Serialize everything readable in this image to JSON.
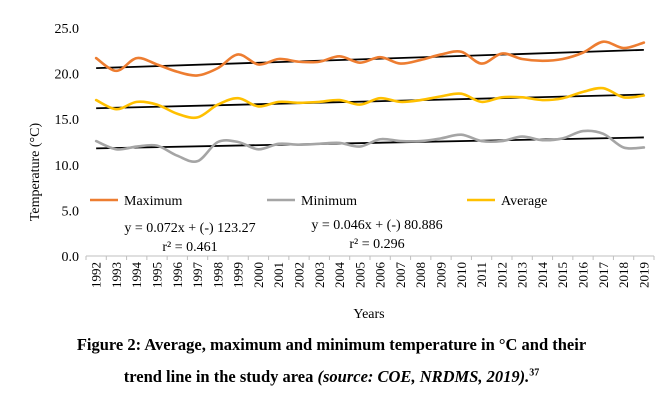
{
  "chart_data": {
    "type": "line",
    "xlabel": "Years",
    "ylabel": "Temperature (°C)",
    "ylim": [
      0,
      25
    ],
    "yticks": [
      "0.0",
      "5.0",
      "10.0",
      "15.0",
      "20.0",
      "25.0"
    ],
    "grid": false,
    "legend_position": "bottom",
    "categories": [
      "1992",
      "1993",
      "1994",
      "1995",
      "1996",
      "1997",
      "1998",
      "1999",
      "2000",
      "2001",
      "2002",
      "2003",
      "2004",
      "2005",
      "2006",
      "2007",
      "2008",
      "2009",
      "2010",
      "2011",
      "2012",
      "2013",
      "2014",
      "2015",
      "2016",
      "2017",
      "2018",
      "2019"
    ],
    "series": [
      {
        "name": "Maximum",
        "color": "#ED7D31",
        "values": [
          21.7,
          20.3,
          21.7,
          21.0,
          20.2,
          19.8,
          20.6,
          22.1,
          21.0,
          21.6,
          21.3,
          21.3,
          21.9,
          21.2,
          21.8,
          21.1,
          21.5,
          22.1,
          22.4,
          21.1,
          22.2,
          21.6,
          21.4,
          21.6,
          22.3,
          23.5,
          22.8,
          23.4
        ],
        "trend": {
          "equation": "y = 0.072x + (-) 123.27",
          "r2": "r² = 0.461"
        }
      },
      {
        "name": "Minimum",
        "color": "#A5A5A5",
        "values": [
          12.6,
          11.7,
          12.0,
          12.1,
          11.0,
          10.4,
          12.5,
          12.5,
          11.7,
          12.3,
          12.2,
          12.3,
          12.4,
          12.0,
          12.8,
          12.6,
          12.6,
          12.9,
          13.3,
          12.6,
          12.6,
          13.1,
          12.7,
          12.9,
          13.7,
          13.4,
          11.9,
          11.9
        ],
        "trend": {
          "equation": "y = 0.046x + (-) 80.886",
          "r2": "r² = 0.296"
        }
      },
      {
        "name": "Average",
        "color": "#FFC000",
        "values": [
          17.1,
          16.1,
          16.9,
          16.6,
          15.6,
          15.2,
          16.6,
          17.3,
          16.4,
          16.9,
          16.8,
          16.9,
          17.1,
          16.6,
          17.3,
          16.9,
          17.1,
          17.5,
          17.8,
          16.9,
          17.4,
          17.4,
          17.1,
          17.3,
          18.0,
          18.4,
          17.4,
          17.6
        ]
      }
    ],
    "trendlines": [
      {
        "series": "Maximum",
        "start": 20.6,
        "end": 22.6
      },
      {
        "series": "Average",
        "start": 16.2,
        "end": 17.7
      },
      {
        "series": "Minimum",
        "start": 11.8,
        "end": 13.0
      }
    ]
  },
  "caption": {
    "line1": "Figure 2: Average, maximum and minimum temperature in °C and their",
    "line2_text": "trend line in the study area ",
    "line2_source": "(source: COE, NRDMS, 2019).",
    "line2_ref": "37"
  }
}
